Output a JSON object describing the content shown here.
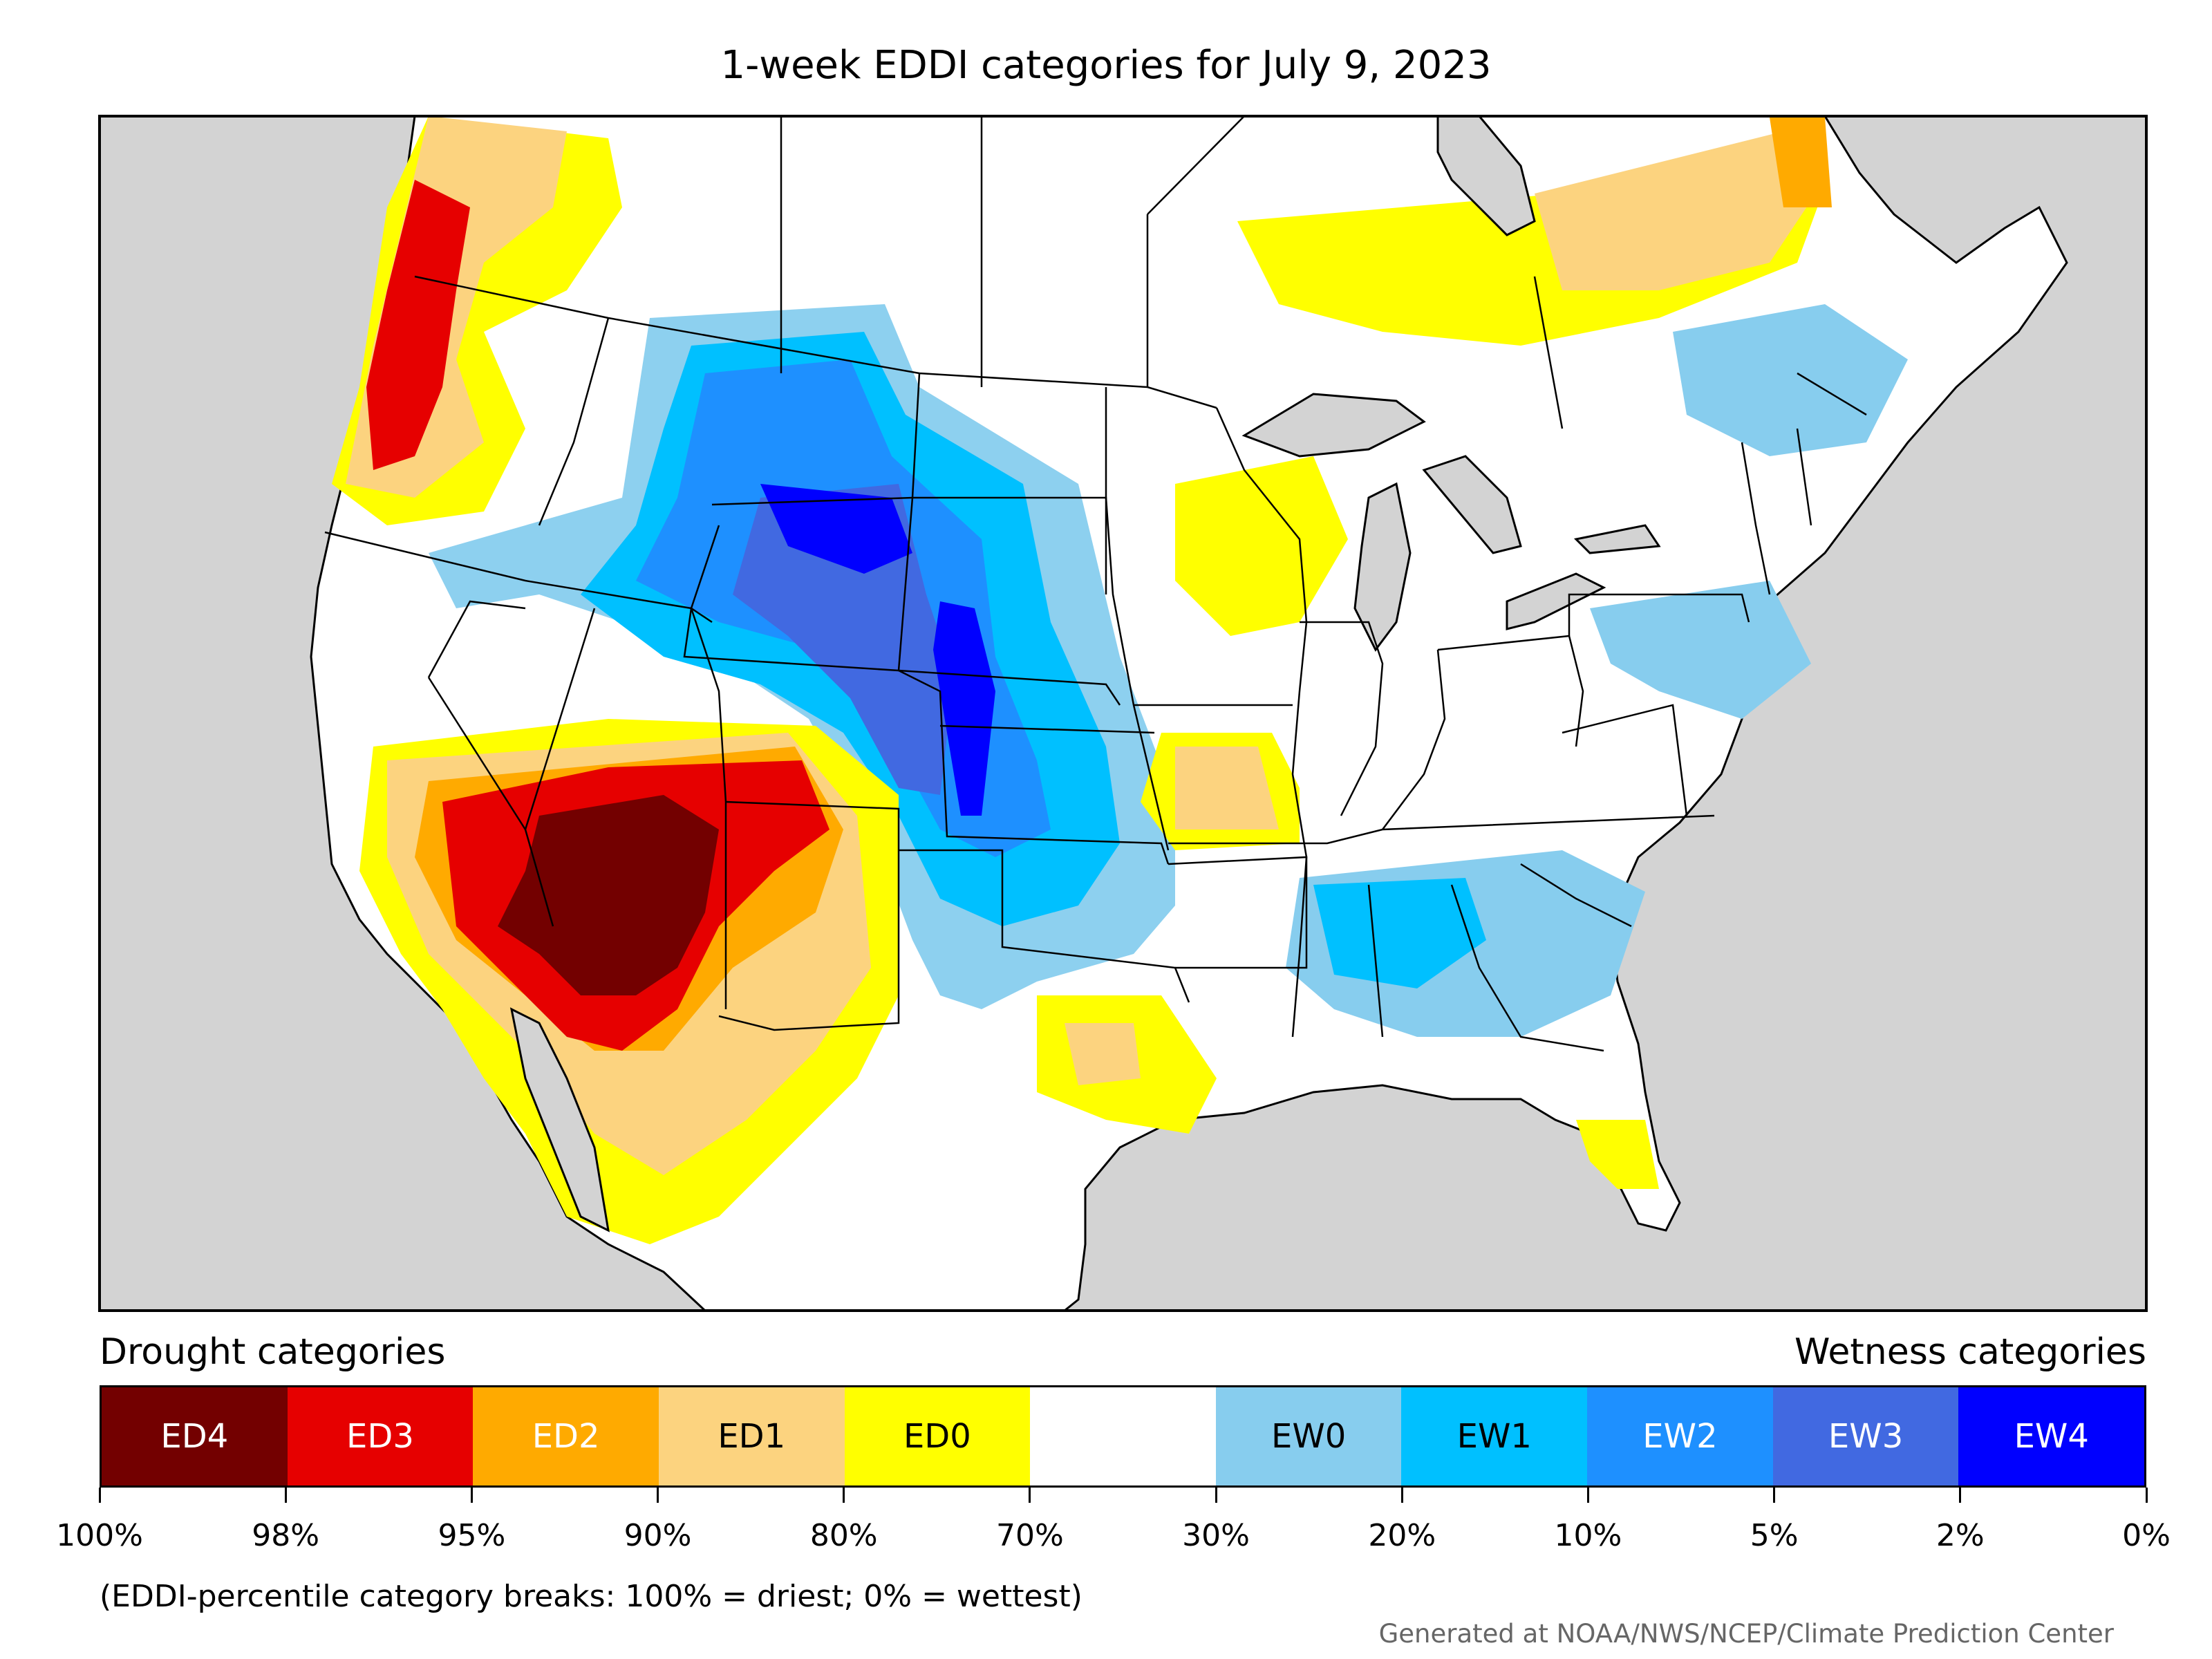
{
  "title": "1-week EDDI categories for July 9, 2023",
  "legend": {
    "drought_heading": "Drought categories",
    "wetness_heading": "Wetness categories",
    "categories": [
      {
        "label": "ED4",
        "color": "#730000",
        "text_color": "#ffffff"
      },
      {
        "label": "ED3",
        "color": "#e60000",
        "text_color": "#ffffff"
      },
      {
        "label": "ED2",
        "color": "#ffaa00",
        "text_color": "#ffffff"
      },
      {
        "label": "ED1",
        "color": "#fcd37f",
        "text_color": "#000000"
      },
      {
        "label": "ED0",
        "color": "#ffff00",
        "text_color": "#000000"
      },
      {
        "label": "",
        "color": "#ffffff",
        "text_color": "#000000"
      },
      {
        "label": "EW0",
        "color": "#87cdee",
        "text_color": "#000000"
      },
      {
        "label": "EW1",
        "color": "#00c0ff",
        "text_color": "#000000"
      },
      {
        "label": "EW2",
        "color": "#1e90ff",
        "text_color": "#ffffff"
      },
      {
        "label": "EW3",
        "color": "#4169e1",
        "text_color": "#ffffff"
      },
      {
        "label": "EW4",
        "color": "#0000ff",
        "text_color": "#ffffff"
      }
    ],
    "breaks": [
      "100%",
      "98%",
      "95%",
      "90%",
      "80%",
      "70%",
      "30%",
      "20%",
      "10%",
      "5%",
      "2%",
      "0%"
    ]
  },
  "note": "(EDDI-percentile category breaks: 100% = driest; 0% = wettest)",
  "credit": "Generated at NOAA/NWS/NCEP/Climate Prediction Center",
  "map_colors": {
    "outside": "#d3d3d3",
    "water": "#d3d3d3",
    "land": "#ffffff",
    "borders": "#000000"
  }
}
